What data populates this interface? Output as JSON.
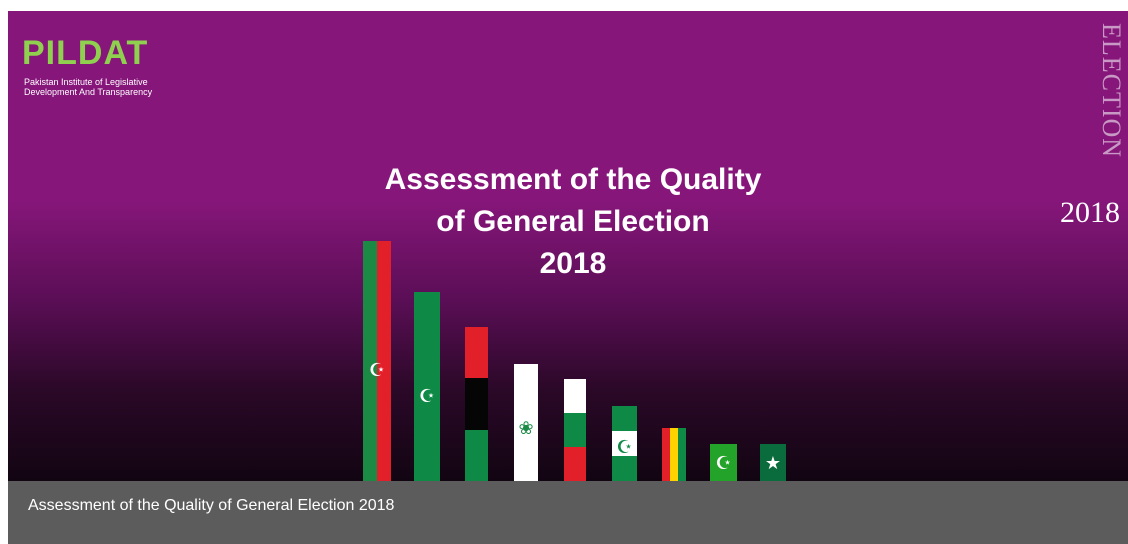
{
  "logo": {
    "wordmark": "PILDAT",
    "subtitle_line1": "Pakistan Institute of Legislative",
    "subtitle_line2": "Development And Transparency"
  },
  "side_label": {
    "word": "ELECTION",
    "year": "2018"
  },
  "headline": {
    "line1": "Assessment of the Quality",
    "line2": "of General Election",
    "line3": "2018"
  },
  "flags": [
    {
      "name": "flag-1",
      "colors": [
        "#1b8a45",
        "#e2202a"
      ],
      "icon": "crescent-star-icon"
    },
    {
      "name": "flag-2",
      "colors": [
        "#0f8a46"
      ],
      "icon": "crescent-star-icon"
    },
    {
      "name": "flag-3",
      "colors": [
        "#e2202a",
        "#050505",
        "#0f8a46"
      ],
      "icon": ""
    },
    {
      "name": "flag-4",
      "colors": [
        "#ffffff"
      ],
      "icon": "emblem-icon"
    },
    {
      "name": "flag-5",
      "colors": [
        "#ffffff",
        "#0f8a46",
        "#e2202a"
      ],
      "icon": ""
    },
    {
      "name": "flag-6",
      "colors": [
        "#0f8a46",
        "#ffffff",
        "#0f8a46"
      ],
      "icon": "crescent-star-icon"
    },
    {
      "name": "flag-7",
      "colors": [
        "#e2202a",
        "#ffd200",
        "#0f8a46"
      ],
      "icon": ""
    },
    {
      "name": "flag-8",
      "colors": [
        "#23a32a"
      ],
      "icon": "crescent-star-icon"
    },
    {
      "name": "flag-9",
      "colors": [
        "#0a6b3c"
      ],
      "icon": "star-icon"
    }
  ],
  "footer": {
    "caption": "Assessment of the Quality of General Election 2018"
  },
  "colors": {
    "banner": "#86167a",
    "footer": "#5c5c5c",
    "logo": "#8fd14f"
  }
}
